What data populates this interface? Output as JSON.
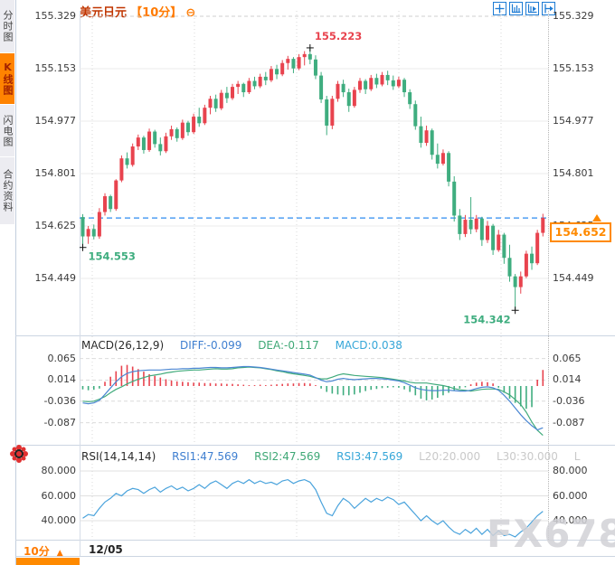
{
  "header": {
    "symbol": "美元日元",
    "interval_tag": "【10分】",
    "collapse_icon": "⊖"
  },
  "toolbar": {
    "icons": [
      "crosshair",
      "zoom-axes",
      "pan-chart",
      "jump-latest"
    ]
  },
  "sidebar": {
    "tabs": [
      {
        "label": "分时图",
        "active": false
      },
      {
        "label": "K线图",
        "active": true
      },
      {
        "label": "闪电图",
        "active": false
      },
      {
        "label": "合约资料",
        "active": false
      }
    ]
  },
  "main_chart": {
    "y_tick_labels": [
      "155.329",
      "155.153",
      "154.977",
      "154.801",
      "154.625",
      "154.449"
    ],
    "current_price_label": "154.652"
  },
  "macd_panel": {
    "title": "MACD(26,12,9)",
    "diff_label": "DIFF:-0.099",
    "dea_label": "DEA:-0.117",
    "macd_label": "MACD:0.038",
    "y_tick_labels": [
      "0.065",
      "0.014",
      "-0.036",
      "-0.087"
    ]
  },
  "rsi_panel": {
    "title": "RSI(14,14,14)",
    "rsi1_label": "RSI1:47.569",
    "rsi2_label": "RSI2:47.569",
    "rsi3_label": "RSI3:47.569",
    "l20_label": "L20:20.000",
    "l30_label": "L30:30.000",
    "trail_label": "L",
    "y_tick_labels": [
      "80.000",
      "60.000",
      "40.000"
    ]
  },
  "bottom_bar": {
    "interval_label": "10分",
    "dropdown_arrow": "▲",
    "date_label": "12/05"
  },
  "watermark": "FX678",
  "colors": {
    "up": "#e8434e",
    "down": "#3fad7f",
    "diff_line": "#4a86d2",
    "dea_line": "#41ab7c",
    "rsi_line": "#4aa3dc",
    "accent_orange": "#ff8300",
    "current_price_line": "#2c8cf0"
  },
  "chart_data": [
    {
      "type": "candlestick",
      "title": "美元日元 10分",
      "y_ticks": [
        155.329,
        155.153,
        154.977,
        154.801,
        154.625,
        154.449
      ],
      "ylim": [
        154.32,
        155.36
      ],
      "current_price": 154.652,
      "annotations": [
        {
          "kind": "high",
          "index": 41,
          "price": 155.223,
          "label": "155.223"
        },
        {
          "kind": "low_start",
          "index": 0,
          "price": 154.553,
          "label": "154.553"
        },
        {
          "kind": "low",
          "index": 78,
          "price": 154.342,
          "label": "154.342"
        }
      ],
      "candles_ohlc": [
        [
          154.655,
          154.665,
          154.553,
          154.59
        ],
        [
          154.59,
          154.625,
          154.565,
          154.615
        ],
        [
          154.615,
          154.63,
          154.58,
          154.59
        ],
        [
          154.59,
          154.685,
          154.582,
          154.672
        ],
        [
          154.672,
          154.735,
          154.66,
          154.725
        ],
        [
          154.725,
          154.73,
          154.672,
          154.682
        ],
        [
          154.682,
          154.782,
          154.676,
          154.778
        ],
        [
          154.778,
          154.862,
          154.772,
          154.852
        ],
        [
          154.852,
          154.872,
          154.818,
          154.83
        ],
        [
          154.83,
          154.902,
          154.824,
          154.892
        ],
        [
          154.892,
          154.932,
          154.88,
          154.922
        ],
        [
          154.922,
          154.928,
          154.868,
          154.88
        ],
        [
          154.88,
          154.952,
          154.874,
          154.942
        ],
        [
          154.942,
          154.948,
          154.888,
          154.9
        ],
        [
          154.9,
          154.922,
          154.862,
          154.876
        ],
        [
          154.876,
          154.938,
          154.87,
          154.926
        ],
        [
          154.926,
          154.962,
          154.914,
          154.95
        ],
        [
          154.95,
          154.956,
          154.908,
          154.92
        ],
        [
          154.92,
          154.982,
          154.914,
          154.972
        ],
        [
          154.972,
          154.978,
          154.928,
          154.94
        ],
        [
          154.94,
          155.002,
          154.934,
          154.992
        ],
        [
          154.992,
          155.022,
          154.958,
          154.97
        ],
        [
          154.97,
          155.032,
          154.964,
          155.022
        ],
        [
          155.022,
          155.062,
          155.0,
          155.052
        ],
        [
          155.052,
          155.066,
          155.008,
          155.02
        ],
        [
          155.02,
          155.082,
          155.014,
          155.072
        ],
        [
          155.072,
          155.092,
          155.038,
          155.054
        ],
        [
          155.054,
          155.102,
          155.048,
          155.092
        ],
        [
          155.092,
          155.112,
          155.068,
          155.102
        ],
        [
          155.102,
          155.106,
          155.058,
          155.074
        ],
        [
          155.074,
          155.122,
          155.068,
          155.112
        ],
        [
          155.112,
          155.126,
          155.084,
          155.094
        ],
        [
          155.094,
          155.136,
          155.088,
          155.126
        ],
        [
          155.126,
          155.142,
          155.098,
          155.114
        ],
        [
          155.114,
          155.162,
          155.108,
          155.152
        ],
        [
          155.152,
          155.166,
          155.118,
          155.134
        ],
        [
          155.134,
          155.182,
          155.128,
          155.172
        ],
        [
          155.172,
          155.196,
          155.15,
          155.186
        ],
        [
          155.186,
          155.192,
          155.138,
          155.154
        ],
        [
          155.154,
          155.202,
          155.148,
          155.192
        ],
        [
          155.192,
          155.212,
          155.164,
          155.202
        ],
        [
          155.202,
          155.223,
          155.168,
          155.184
        ],
        [
          155.184,
          155.198,
          155.118,
          155.13
        ],
        [
          155.13,
          155.142,
          155.038,
          155.05
        ],
        [
          155.05,
          155.062,
          154.93,
          154.962
        ],
        [
          154.962,
          155.062,
          154.95,
          155.052
        ],
        [
          155.052,
          155.112,
          155.042,
          155.102
        ],
        [
          155.102,
          155.116,
          155.058,
          155.074
        ],
        [
          155.074,
          155.086,
          155.008,
          155.028
        ],
        [
          155.028,
          155.092,
          155.022,
          155.082
        ],
        [
          155.082,
          155.122,
          155.072,
          155.112
        ],
        [
          155.112,
          155.118,
          155.068,
          155.084
        ],
        [
          155.084,
          155.132,
          155.078,
          155.122
        ],
        [
          155.122,
          155.136,
          155.088,
          155.1
        ],
        [
          155.1,
          155.142,
          155.094,
          155.132
        ],
        [
          155.132,
          155.146,
          155.098,
          155.114
        ],
        [
          155.114,
          155.13,
          155.082,
          155.094
        ],
        [
          155.094,
          155.126,
          155.088,
          155.116
        ],
        [
          155.116,
          155.122,
          155.058,
          155.074
        ],
        [
          155.074,
          155.084,
          155.018,
          155.034
        ],
        [
          155.034,
          155.046,
          154.948,
          154.96
        ],
        [
          154.96,
          154.992,
          154.888,
          154.904
        ],
        [
          154.904,
          154.962,
          154.894,
          154.946
        ],
        [
          154.946,
          154.952,
          154.848,
          154.864
        ],
        [
          154.864,
          154.902,
          154.818,
          154.834
        ],
        [
          154.834,
          154.882,
          154.828,
          154.87
        ],
        [
          154.87,
          154.876,
          154.758,
          154.774
        ],
        [
          154.774,
          154.792,
          154.64,
          154.66
        ],
        [
          154.66,
          154.682,
          154.578,
          154.598
        ],
        [
          154.598,
          154.662,
          154.588,
          154.646
        ],
        [
          154.646,
          154.722,
          154.598,
          154.614
        ],
        [
          154.614,
          154.662,
          154.604,
          154.65
        ],
        [
          154.65,
          154.656,
          154.558,
          154.578
        ],
        [
          154.578,
          154.642,
          154.568,
          154.626
        ],
        [
          154.626,
          154.632,
          154.528,
          154.544
        ],
        [
          154.544,
          154.612,
          154.538,
          154.596
        ],
        [
          154.596,
          154.602,
          154.498,
          154.518
        ],
        [
          154.518,
          154.562,
          154.438,
          154.456
        ],
        [
          154.456,
          154.464,
          154.342,
          154.42
        ],
        [
          154.42,
          154.472,
          154.398,
          154.456
        ],
        [
          154.456,
          154.542,
          154.45,
          154.532
        ],
        [
          154.532,
          154.556,
          154.478,
          154.5
        ],
        [
          154.5,
          154.612,
          154.494,
          154.602
        ],
        [
          154.602,
          154.666,
          154.59,
          154.652
        ]
      ]
    },
    {
      "type": "macd",
      "params": [
        26,
        12,
        9
      ],
      "diff": -0.099,
      "dea": -0.117,
      "macd": 0.038,
      "y_ticks": [
        0.065,
        0.014,
        -0.036,
        -0.087
      ],
      "hist_series": [
        -0.008,
        -0.01,
        -0.009,
        -0.006,
        0.01,
        0.022,
        0.035,
        0.048,
        0.05,
        0.046,
        0.04,
        0.034,
        0.028,
        0.024,
        0.02,
        0.016,
        0.013,
        0.011,
        0.01,
        0.009,
        0.008,
        0.008,
        0.007,
        0.007,
        0.006,
        0.006,
        0.005,
        0.005,
        0.004,
        0.003,
        0.002,
        0.002,
        0.003,
        0.002,
        0.003,
        0.004,
        0.005,
        0.006,
        0.006,
        0.007,
        0.007,
        0.006,
        0.002,
        -0.006,
        -0.014,
        -0.018,
        -0.02,
        -0.022,
        -0.022,
        -0.02,
        -0.016,
        -0.012,
        -0.009,
        -0.007,
        -0.005,
        -0.004,
        -0.003,
        -0.004,
        -0.008,
        -0.014,
        -0.022,
        -0.03,
        -0.034,
        -0.032,
        -0.028,
        -0.022,
        -0.016,
        -0.01,
        -0.006,
        -0.003,
        0.004,
        0.008,
        0.01,
        0.009,
        0.006,
        -0.004,
        -0.016,
        -0.03,
        -0.04,
        -0.048,
        -0.054,
        -0.05,
        0.015,
        0.038
      ],
      "diff_series": [
        -0.04,
        -0.042,
        -0.04,
        -0.034,
        -0.02,
        -0.005,
        0.01,
        0.022,
        0.03,
        0.034,
        0.036,
        0.037,
        0.038,
        0.038,
        0.038,
        0.039,
        0.04,
        0.04,
        0.041,
        0.041,
        0.042,
        0.042,
        0.043,
        0.044,
        0.044,
        0.043,
        0.043,
        0.044,
        0.045,
        0.046,
        0.046,
        0.045,
        0.044,
        0.042,
        0.04,
        0.038,
        0.036,
        0.034,
        0.032,
        0.03,
        0.028,
        0.026,
        0.02,
        0.014,
        0.01,
        0.012,
        0.016,
        0.018,
        0.016,
        0.015,
        0.016,
        0.017,
        0.018,
        0.018,
        0.017,
        0.016,
        0.014,
        0.012,
        0.008,
        0.002,
        -0.004,
        -0.008,
        -0.01,
        -0.011,
        -0.011,
        -0.01,
        -0.01,
        -0.011,
        -0.012,
        -0.012,
        -0.01,
        -0.006,
        -0.003,
        -0.002,
        -0.004,
        -0.01,
        -0.022,
        -0.036,
        -0.052,
        -0.068,
        -0.082,
        -0.094,
        -0.104,
        -0.099
      ],
      "dea_series": [
        -0.036,
        -0.037,
        -0.036,
        -0.031,
        -0.025,
        -0.016,
        -0.008,
        -0.002,
        0.005,
        0.011,
        0.016,
        0.02,
        0.024,
        0.026,
        0.028,
        0.031,
        0.033,
        0.035,
        0.036,
        0.037,
        0.038,
        0.038,
        0.039,
        0.04,
        0.041,
        0.04,
        0.04,
        0.041,
        0.043,
        0.044,
        0.045,
        0.044,
        0.043,
        0.041,
        0.039,
        0.036,
        0.034,
        0.031,
        0.029,
        0.027,
        0.025,
        0.023,
        0.019,
        0.017,
        0.017,
        0.021,
        0.026,
        0.029,
        0.027,
        0.025,
        0.024,
        0.023,
        0.022,
        0.021,
        0.02,
        0.018,
        0.016,
        0.014,
        0.012,
        0.009,
        0.007,
        0.007,
        0.007,
        0.005,
        0.003,
        0.001,
        -0.002,
        -0.006,
        -0.009,
        -0.01,
        -0.012,
        -0.01,
        -0.008,
        -0.007,
        -0.007,
        -0.008,
        -0.014,
        -0.021,
        -0.032,
        -0.044,
        -0.062,
        -0.085,
        -0.105,
        -0.117
      ]
    },
    {
      "type": "line",
      "name": "RSI",
      "params": [
        14,
        14,
        14
      ],
      "rsi1": 47.569,
      "rsi2": 47.569,
      "rsi3": 47.569,
      "levels": {
        "L20": 20.0,
        "L30": 30.0
      },
      "y_ticks": [
        80.0,
        60.0,
        40.0
      ],
      "values": [
        42,
        45,
        44,
        50,
        55,
        58,
        62,
        60,
        64,
        66,
        65,
        62,
        65,
        67,
        63,
        66,
        68,
        65,
        67,
        64,
        66,
        69,
        66,
        70,
        72,
        69,
        66,
        70,
        72,
        70,
        73,
        70,
        72,
        70,
        71,
        69,
        72,
        73,
        70,
        72,
        73,
        71,
        65,
        55,
        46,
        44,
        52,
        58,
        55,
        50,
        54,
        58,
        55,
        58,
        56,
        59,
        57,
        53,
        55,
        50,
        45,
        40,
        44,
        40,
        37,
        40,
        35,
        31,
        29,
        33,
        30,
        34,
        29,
        33,
        28,
        32,
        28,
        29,
        27,
        31,
        34,
        39,
        44,
        47.569
      ]
    }
  ]
}
